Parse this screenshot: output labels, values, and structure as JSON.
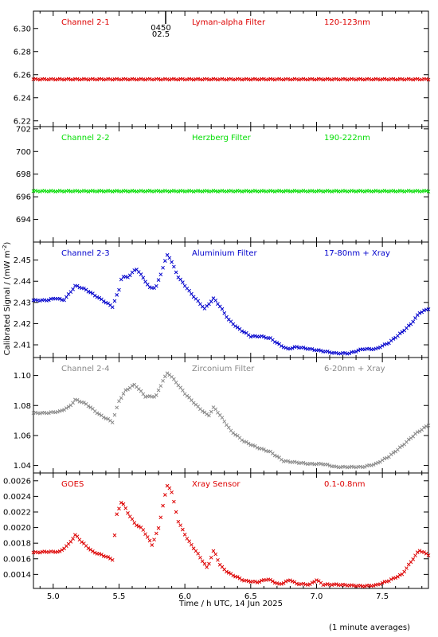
{
  "footnote": "(1 minute averages)",
  "marker_labels": [
    "0450",
    "02.5"
  ],
  "chart_data": {
    "type": "scatter",
    "xlabel": "Time / h UTC, 14 Jun 2025",
    "ylabel": "Calibrated Signal / (mW m",
    "ylabel_sup": "-2",
    "ylabel_end": ")",
    "xlim": [
      4.85,
      7.85
    ],
    "xticks": [
      5.0,
      5.5,
      6.0,
      6.5,
      7.0,
      7.5
    ],
    "xtick_labels": [
      "5.0",
      "5.5",
      "6.0",
      "6.5",
      "7.0",
      "7.5"
    ],
    "panels": [
      {
        "channel": "Channel 2-1",
        "filter": "Lyman-alpha Filter",
        "band": "120-123nm",
        "color": "#dd0000",
        "ylim": [
          6.215,
          6.315
        ],
        "yticks": [
          6.22,
          6.24,
          6.26,
          6.28,
          6.3
        ],
        "ytick_labels": [
          "6.22",
          "6.24",
          "6.26",
          "6.28",
          "6.30"
        ],
        "profile": [
          [
            4.85,
            6.256
          ],
          [
            7.85,
            6.256
          ]
        ]
      },
      {
        "channel": "Channel 2-2",
        "filter": "Herzberg Filter",
        "band": "190-222nm",
        "color": "#00dd00",
        "ylim": [
          692.0,
          702.2
        ],
        "yticks": [
          694,
          696,
          698,
          700,
          702
        ],
        "ytick_labels": [
          "694",
          "696",
          "698",
          "700",
          "702"
        ],
        "profile": [
          [
            4.85,
            696.5
          ],
          [
            7.85,
            696.5
          ]
        ]
      },
      {
        "channel": "Channel 2-3",
        "filter": "Aluminium Filter",
        "band": "17-80nm + Xray",
        "color": "#0000cc",
        "ylim": [
          2.404,
          2.4585
        ],
        "yticks": [
          2.41,
          2.42,
          2.43,
          2.44,
          2.45
        ],
        "ytick_labels": [
          "2.41",
          "2.42",
          "2.43",
          "2.44",
          "2.45"
        ],
        "profile": [
          [
            4.85,
            2.431
          ],
          [
            4.95,
            2.431
          ],
          [
            5.02,
            2.432
          ],
          [
            5.08,
            2.431
          ],
          [
            5.12,
            2.434
          ],
          [
            5.17,
            2.438
          ],
          [
            5.25,
            2.436
          ],
          [
            5.35,
            2.432
          ],
          [
            5.45,
            2.428
          ],
          [
            5.5,
            2.436
          ],
          [
            5.52,
            2.442
          ],
          [
            5.57,
            2.442
          ],
          [
            5.63,
            2.446
          ],
          [
            5.68,
            2.442
          ],
          [
            5.73,
            2.437
          ],
          [
            5.78,
            2.437
          ],
          [
            5.82,
            2.444
          ],
          [
            5.87,
            2.453
          ],
          [
            5.9,
            2.449
          ],
          [
            5.95,
            2.442
          ],
          [
            6.05,
            2.434
          ],
          [
            6.15,
            2.427
          ],
          [
            6.22,
            2.432
          ],
          [
            6.28,
            2.427
          ],
          [
            6.33,
            2.422
          ],
          [
            6.4,
            2.418
          ],
          [
            6.5,
            2.414
          ],
          [
            6.58,
            2.414
          ],
          [
            6.65,
            2.413
          ],
          [
            6.72,
            2.41
          ],
          [
            6.78,
            2.408
          ],
          [
            6.85,
            2.409
          ],
          [
            6.95,
            2.408
          ],
          [
            7.05,
            2.407
          ],
          [
            7.15,
            2.406
          ],
          [
            7.25,
            2.406
          ],
          [
            7.35,
            2.408
          ],
          [
            7.45,
            2.408
          ],
          [
            7.55,
            2.411
          ],
          [
            7.65,
            2.416
          ],
          [
            7.72,
            2.42
          ],
          [
            7.78,
            2.425
          ],
          [
            7.85,
            2.427
          ]
        ]
      },
      {
        "channel": "Channel 2-4",
        "filter": "Zirconium Filter",
        "band": "6-20nm + Xray",
        "color": "#888888",
        "ylim": [
          1.035,
          1.112
        ],
        "yticks": [
          1.04,
          1.06,
          1.08,
          1.1
        ],
        "ytick_labels": [
          "1.04",
          "1.06",
          "1.08",
          "1.10"
        ],
        "profile": [
          [
            4.85,
            1.075
          ],
          [
            4.95,
            1.075
          ],
          [
            5.05,
            1.076
          ],
          [
            5.12,
            1.079
          ],
          [
            5.17,
            1.084
          ],
          [
            5.25,
            1.081
          ],
          [
            5.35,
            1.074
          ],
          [
            5.45,
            1.069
          ],
          [
            5.5,
            1.083
          ],
          [
            5.55,
            1.09
          ],
          [
            5.62,
            1.094
          ],
          [
            5.7,
            1.086
          ],
          [
            5.78,
            1.086
          ],
          [
            5.83,
            1.096
          ],
          [
            5.87,
            1.102
          ],
          [
            5.92,
            1.097
          ],
          [
            6.0,
            1.088
          ],
          [
            6.1,
            1.079
          ],
          [
            6.18,
            1.073
          ],
          [
            6.22,
            1.079
          ],
          [
            6.28,
            1.072
          ],
          [
            6.35,
            1.063
          ],
          [
            6.45,
            1.056
          ],
          [
            6.55,
            1.052
          ],
          [
            6.65,
            1.049
          ],
          [
            6.75,
            1.043
          ],
          [
            6.85,
            1.042
          ],
          [
            6.95,
            1.041
          ],
          [
            7.05,
            1.041
          ],
          [
            7.15,
            1.039
          ],
          [
            7.25,
            1.039
          ],
          [
            7.35,
            1.039
          ],
          [
            7.45,
            1.041
          ],
          [
            7.55,
            1.046
          ],
          [
            7.65,
            1.053
          ],
          [
            7.75,
            1.061
          ],
          [
            7.85,
            1.067
          ]
        ]
      },
      {
        "channel": "GOES",
        "filter": "Xray Sensor",
        "band": "0.1-0.8nm",
        "color": "#dd0000",
        "ylim": [
          0.00122,
          0.0027
        ],
        "yticks": [
          0.0014,
          0.0016,
          0.0018,
          0.002,
          0.0022,
          0.0024,
          0.0026
        ],
        "ytick_labels": [
          "0.0014",
          "0.0016",
          "0.0018",
          "0.0020",
          "0.0022",
          "0.0024",
          "0.0026"
        ],
        "profile": [
          [
            4.85,
            0.00168
          ],
          [
            4.95,
            0.00169
          ],
          [
            5.05,
            0.00169
          ],
          [
            5.12,
            0.00179
          ],
          [
            5.17,
            0.00191
          ],
          [
            5.22,
            0.00181
          ],
          [
            5.3,
            0.00169
          ],
          [
            5.4,
            0.00163
          ],
          [
            5.45,
            0.00159
          ],
          [
            5.48,
            0.00215
          ],
          [
            5.52,
            0.00234
          ],
          [
            5.57,
            0.00218
          ],
          [
            5.62,
            0.00205
          ],
          [
            5.68,
            0.00198
          ],
          [
            5.75,
            0.00178
          ],
          [
            5.8,
            0.00199
          ],
          [
            5.84,
            0.00234
          ],
          [
            5.87,
            0.00256
          ],
          [
            5.9,
            0.00245
          ],
          [
            5.95,
            0.00208
          ],
          [
            6.02,
            0.00185
          ],
          [
            6.1,
            0.00166
          ],
          [
            6.17,
            0.00148
          ],
          [
            6.22,
            0.00171
          ],
          [
            6.27,
            0.00151
          ],
          [
            6.33,
            0.00142
          ],
          [
            6.45,
            0.00132
          ],
          [
            6.55,
            0.0013
          ],
          [
            6.63,
            0.00134
          ],
          [
            6.72,
            0.00127
          ],
          [
            6.8,
            0.00133
          ],
          [
            6.85,
            0.00128
          ],
          [
            6.95,
            0.00127
          ],
          [
            7.0,
            0.00133
          ],
          [
            7.05,
            0.00127
          ],
          [
            7.15,
            0.00127
          ],
          [
            7.25,
            0.00126
          ],
          [
            7.35,
            0.00125
          ],
          [
            7.45,
            0.00126
          ],
          [
            7.55,
            0.00132
          ],
          [
            7.65,
            0.0014
          ],
          [
            7.7,
            0.00152
          ],
          [
            7.78,
            0.00171
          ],
          [
            7.85,
            0.00165
          ]
        ]
      }
    ]
  }
}
